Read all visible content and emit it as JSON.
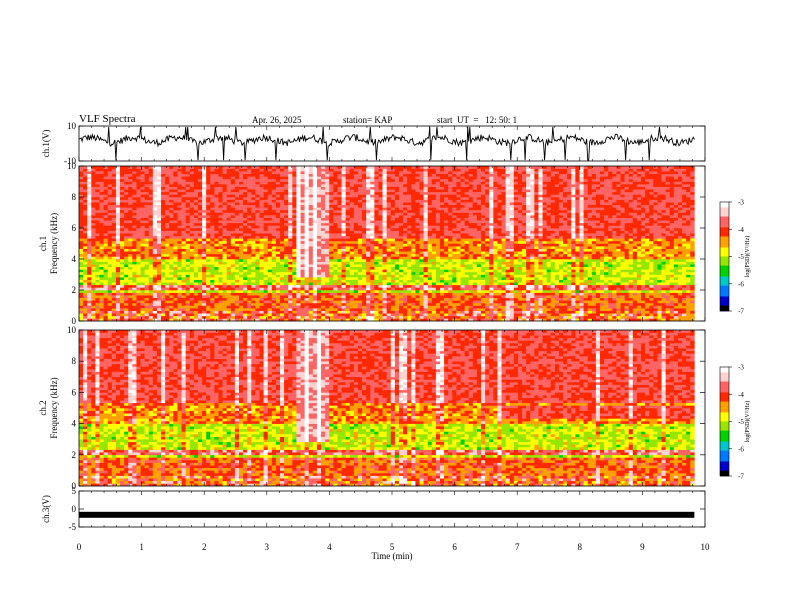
{
  "header": {
    "title": "VLF Spectra",
    "date": "Apr. 26, 2025",
    "station": "station= KAP",
    "start": "start  UT  =   12: 50: 1"
  },
  "colors": {
    "plot_frame": "#000000",
    "waveform": "#000000",
    "colormap": [
      "#000000",
      "#0000c8",
      "#0078ff",
      "#00c8c8",
      "#00d200",
      "#96e600",
      "#ffff00",
      "#ffa000",
      "#ff2800",
      "#ff6464",
      "#ffd2d2",
      "#ffffff"
    ]
  },
  "chart_data": [
    {
      "type": "line",
      "panel": "ch1-waveform",
      "ylabel": "ch.1(V)",
      "ylim": [
        -10,
        10
      ],
      "ytick_labels": [
        "10",
        "-10"
      ],
      "xlim": [
        0,
        10
      ],
      "description_values": {
        "mean_level_V": 2,
        "data_end_min": 9.83
      }
    },
    {
      "type": "heatmap",
      "panel": "ch1-spectrogram",
      "ylabel": "Frequency (kHz)",
      "ylabel_channel": "ch.1",
      "ylim": [
        0,
        10
      ],
      "ytick_labels": [
        "0",
        "2",
        "4",
        "6",
        "8",
        "10"
      ],
      "xlim": [
        0,
        10
      ],
      "data_end_min": 9.83,
      "anomaly_interval_min": [
        3.45,
        4.0
      ],
      "colorbar": {
        "label": "log(PSD)(V²/Hz)",
        "range": [
          -7,
          -3
        ],
        "tick_labels": [
          "-3",
          "-4",
          "-5",
          "-6",
          "-7"
        ]
      }
    },
    {
      "type": "heatmap",
      "panel": "ch2-spectrogram",
      "ylabel": "Frequency (kHz)",
      "ylabel_channel": "ch.2",
      "ylim": [
        0,
        10
      ],
      "ytick_labels": [
        "0",
        "2",
        "4",
        "6",
        "8",
        "10"
      ],
      "xlim": [
        0,
        10
      ],
      "data_end_min": 9.83,
      "anomaly_interval_min": [
        3.45,
        4.0
      ],
      "band_shift_at_min": 6.7,
      "colorbar": {
        "label": "log(PSD)(V²/Hz)",
        "range": [
          -7,
          -3
        ],
        "tick_labels": [
          "-3",
          "-4",
          "-5",
          "-6",
          "-7"
        ]
      }
    },
    {
      "type": "line",
      "panel": "ch3-waveform",
      "ylabel": "ch.3(V)",
      "ylim": [
        -5,
        5
      ],
      "ytick_labels": [
        "5",
        "0",
        "-5"
      ],
      "xlim": [
        0,
        10
      ],
      "description_values": {
        "mean_level_V": -1.6
      }
    }
  ],
  "xaxis": {
    "label": "Time (min)",
    "tick_labels": [
      "0",
      "1",
      "2",
      "3",
      "4",
      "5",
      "6",
      "7",
      "8",
      "9",
      "10"
    ]
  }
}
